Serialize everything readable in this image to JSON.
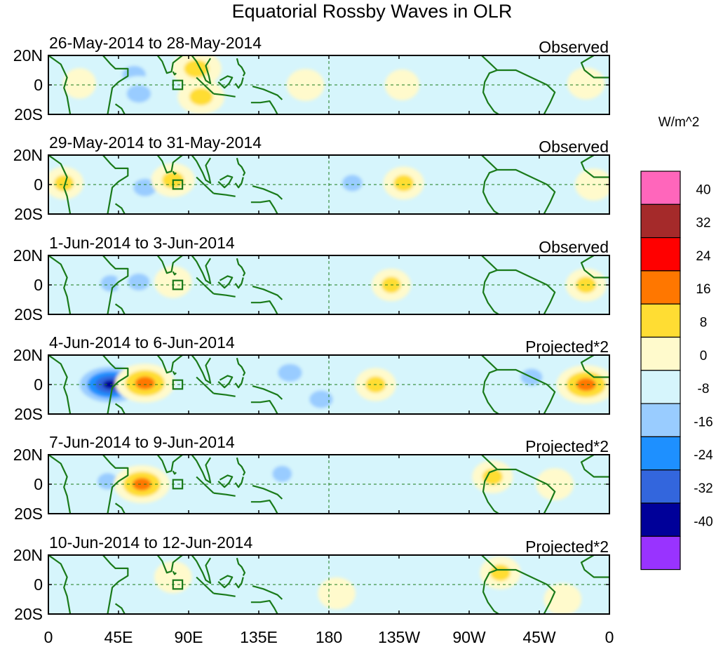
{
  "chart_data": {
    "type": "heatmap",
    "title": "Equatorial Rossby Waves in OLR",
    "units_label": "W/m^2",
    "x_ticks": [
      "0",
      "45E",
      "90E",
      "135E",
      "180",
      "135W",
      "90W",
      "45W",
      "0"
    ],
    "y_ticks": [
      "20N",
      "0",
      "20S"
    ],
    "longitude_range": [
      0,
      360
    ],
    "latitude_range": [
      -20,
      20
    ],
    "colorbar": {
      "levels": [
        -40,
        -32,
        -24,
        -16,
        -8,
        0,
        8,
        16,
        24,
        32,
        40
      ],
      "colors": [
        "#9933ff",
        "#000099",
        "#3366dd",
        "#1e90ff",
        "#99ccff",
        "#d6f5fc",
        "#fffacc",
        "#ffdd33",
        "#ff7700",
        "#ff0000",
        "#a52a2a",
        "#ff66bb"
      ]
    },
    "panels": [
      {
        "label": "26-May-2014 to 28-May-2014",
        "kind": "Observed",
        "anomalies": [
          {
            "lon": 55,
            "lat": 7,
            "value": -14
          },
          {
            "lon": 58,
            "lat": -6,
            "value": -15
          },
          {
            "lon": 95,
            "lat": 11,
            "value": 16
          },
          {
            "lon": 98,
            "lat": -8,
            "value": 14
          },
          {
            "lon": 135,
            "lat": 2,
            "value": -6
          },
          {
            "lon": 165,
            "lat": 0,
            "value": 8
          },
          {
            "lon": 197,
            "lat": 0,
            "value": -6
          },
          {
            "lon": 227,
            "lat": 0,
            "value": 6
          },
          {
            "lon": 345,
            "lat": 1,
            "value": 8
          },
          {
            "lon": 20,
            "lat": 1,
            "value": 5
          }
        ]
      },
      {
        "label": "29-May-2014 to 31-May-2014",
        "kind": "Observed",
        "anomalies": [
          {
            "lon": 62,
            "lat": -2,
            "value": -14
          },
          {
            "lon": 80,
            "lat": 3,
            "value": 12
          },
          {
            "lon": 10,
            "lat": 1,
            "value": 9
          },
          {
            "lon": 130,
            "lat": 0,
            "value": -6
          },
          {
            "lon": 195,
            "lat": 1,
            "value": -10
          },
          {
            "lon": 228,
            "lat": 1,
            "value": 10
          },
          {
            "lon": 280,
            "lat": 0,
            "value": -7
          },
          {
            "lon": 350,
            "lat": 0,
            "value": 8
          }
        ]
      },
      {
        "label": "1-Jun-2014 to 3-Jun-2014",
        "kind": "Observed",
        "anomalies": [
          {
            "lon": 40,
            "lat": 1,
            "value": -10
          },
          {
            "lon": 58,
            "lat": 2,
            "value": -12
          },
          {
            "lon": 80,
            "lat": 2,
            "value": 8
          },
          {
            "lon": 155,
            "lat": 0,
            "value": -6
          },
          {
            "lon": 220,
            "lat": 0,
            "value": 9
          },
          {
            "lon": 345,
            "lat": 0,
            "value": 10
          }
        ]
      },
      {
        "label": "4-Jun-2014 to 6-Jun-2014",
        "kind": "Projected*2",
        "anomalies": [
          {
            "lon": 40,
            "lat": 0,
            "value": -34
          },
          {
            "lon": 62,
            "lat": 1,
            "value": 22
          },
          {
            "lon": 155,
            "lat": 8,
            "value": -15
          },
          {
            "lon": 175,
            "lat": -10,
            "value": -14
          },
          {
            "lon": 210,
            "lat": 0,
            "value": 10
          },
          {
            "lon": 310,
            "lat": 5,
            "value": -12
          },
          {
            "lon": 345,
            "lat": 0,
            "value": 22
          },
          {
            "lon": 110,
            "lat": 4,
            "value": -8
          }
        ]
      },
      {
        "label": "7-Jun-2014 to 9-Jun-2014",
        "kind": "Projected*2",
        "anomalies": [
          {
            "lon": 38,
            "lat": 2,
            "value": -10
          },
          {
            "lon": 60,
            "lat": 0,
            "value": 20
          },
          {
            "lon": 150,
            "lat": 7,
            "value": -9
          },
          {
            "lon": 285,
            "lat": 5,
            "value": 10
          },
          {
            "lon": 325,
            "lat": 0,
            "value": 8
          }
        ]
      },
      {
        "label": "10-Jun-2014 to 12-Jun-2014",
        "kind": "Projected*2",
        "anomalies": [
          {
            "lon": 30,
            "lat": 0,
            "value": -7
          },
          {
            "lon": 80,
            "lat": 5,
            "value": 8
          },
          {
            "lon": 150,
            "lat": -8,
            "value": -7
          },
          {
            "lon": 185,
            "lat": -6,
            "value": 8
          },
          {
            "lon": 290,
            "lat": 8,
            "value": 10
          },
          {
            "lon": 330,
            "lat": -10,
            "value": 8
          }
        ]
      }
    ]
  }
}
